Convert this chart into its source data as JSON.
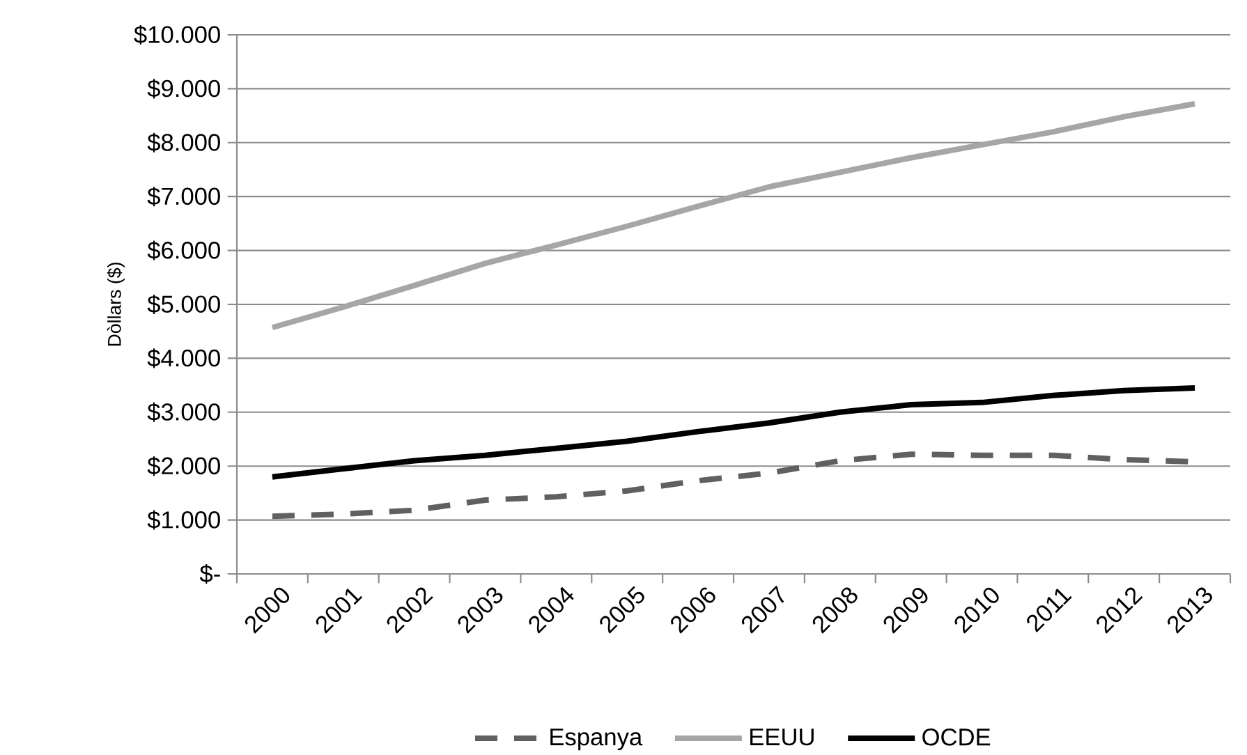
{
  "chart_data": {
    "type": "line",
    "ylabel": "Dòllars ($)",
    "categories": [
      "2000",
      "2001",
      "2002",
      "2003",
      "2004",
      "2005",
      "2006",
      "2007",
      "2008",
      "2009",
      "2010",
      "2011",
      "2012",
      "2013"
    ],
    "series": [
      {
        "name": "Espanya",
        "color": "#606060",
        "line_style": "dashed",
        "values": [
          1070,
          1110,
          1180,
          1370,
          1430,
          1540,
          1730,
          1870,
          2100,
          2220,
          2200,
          2200,
          2120,
          2080
        ]
      },
      {
        "name": "EEUU",
        "color": "#a6a6a6",
        "line_style": "solid",
        "values": [
          4570,
          4950,
          5350,
          5760,
          6100,
          6450,
          6820,
          7180,
          7450,
          7720,
          7960,
          8200,
          8480,
          8720
        ]
      },
      {
        "name": "OCDE",
        "color": "#000000",
        "line_style": "solid",
        "values": [
          1800,
          1950,
          2100,
          2200,
          2330,
          2460,
          2640,
          2800,
          3000,
          3140,
          3180,
          3310,
          3400,
          3450
        ]
      }
    ],
    "ylim": [
      0,
      10000
    ],
    "yticks": [
      {
        "value": 0,
        "label": "$-"
      },
      {
        "value": 1000,
        "label": "$1.000"
      },
      {
        "value": 2000,
        "label": "$2.000"
      },
      {
        "value": 3000,
        "label": "$3.000"
      },
      {
        "value": 4000,
        "label": "$4.000"
      },
      {
        "value": 5000,
        "label": "$5.000"
      },
      {
        "value": 6000,
        "label": "$6.000"
      },
      {
        "value": 7000,
        "label": "$7.000"
      },
      {
        "value": 8000,
        "label": "$8.000"
      },
      {
        "value": 9000,
        "label": "$9.000"
      },
      {
        "value": 10000,
        "label": "$10.000"
      }
    ],
    "grid": "y",
    "legend": "bottom",
    "marker": "none"
  }
}
